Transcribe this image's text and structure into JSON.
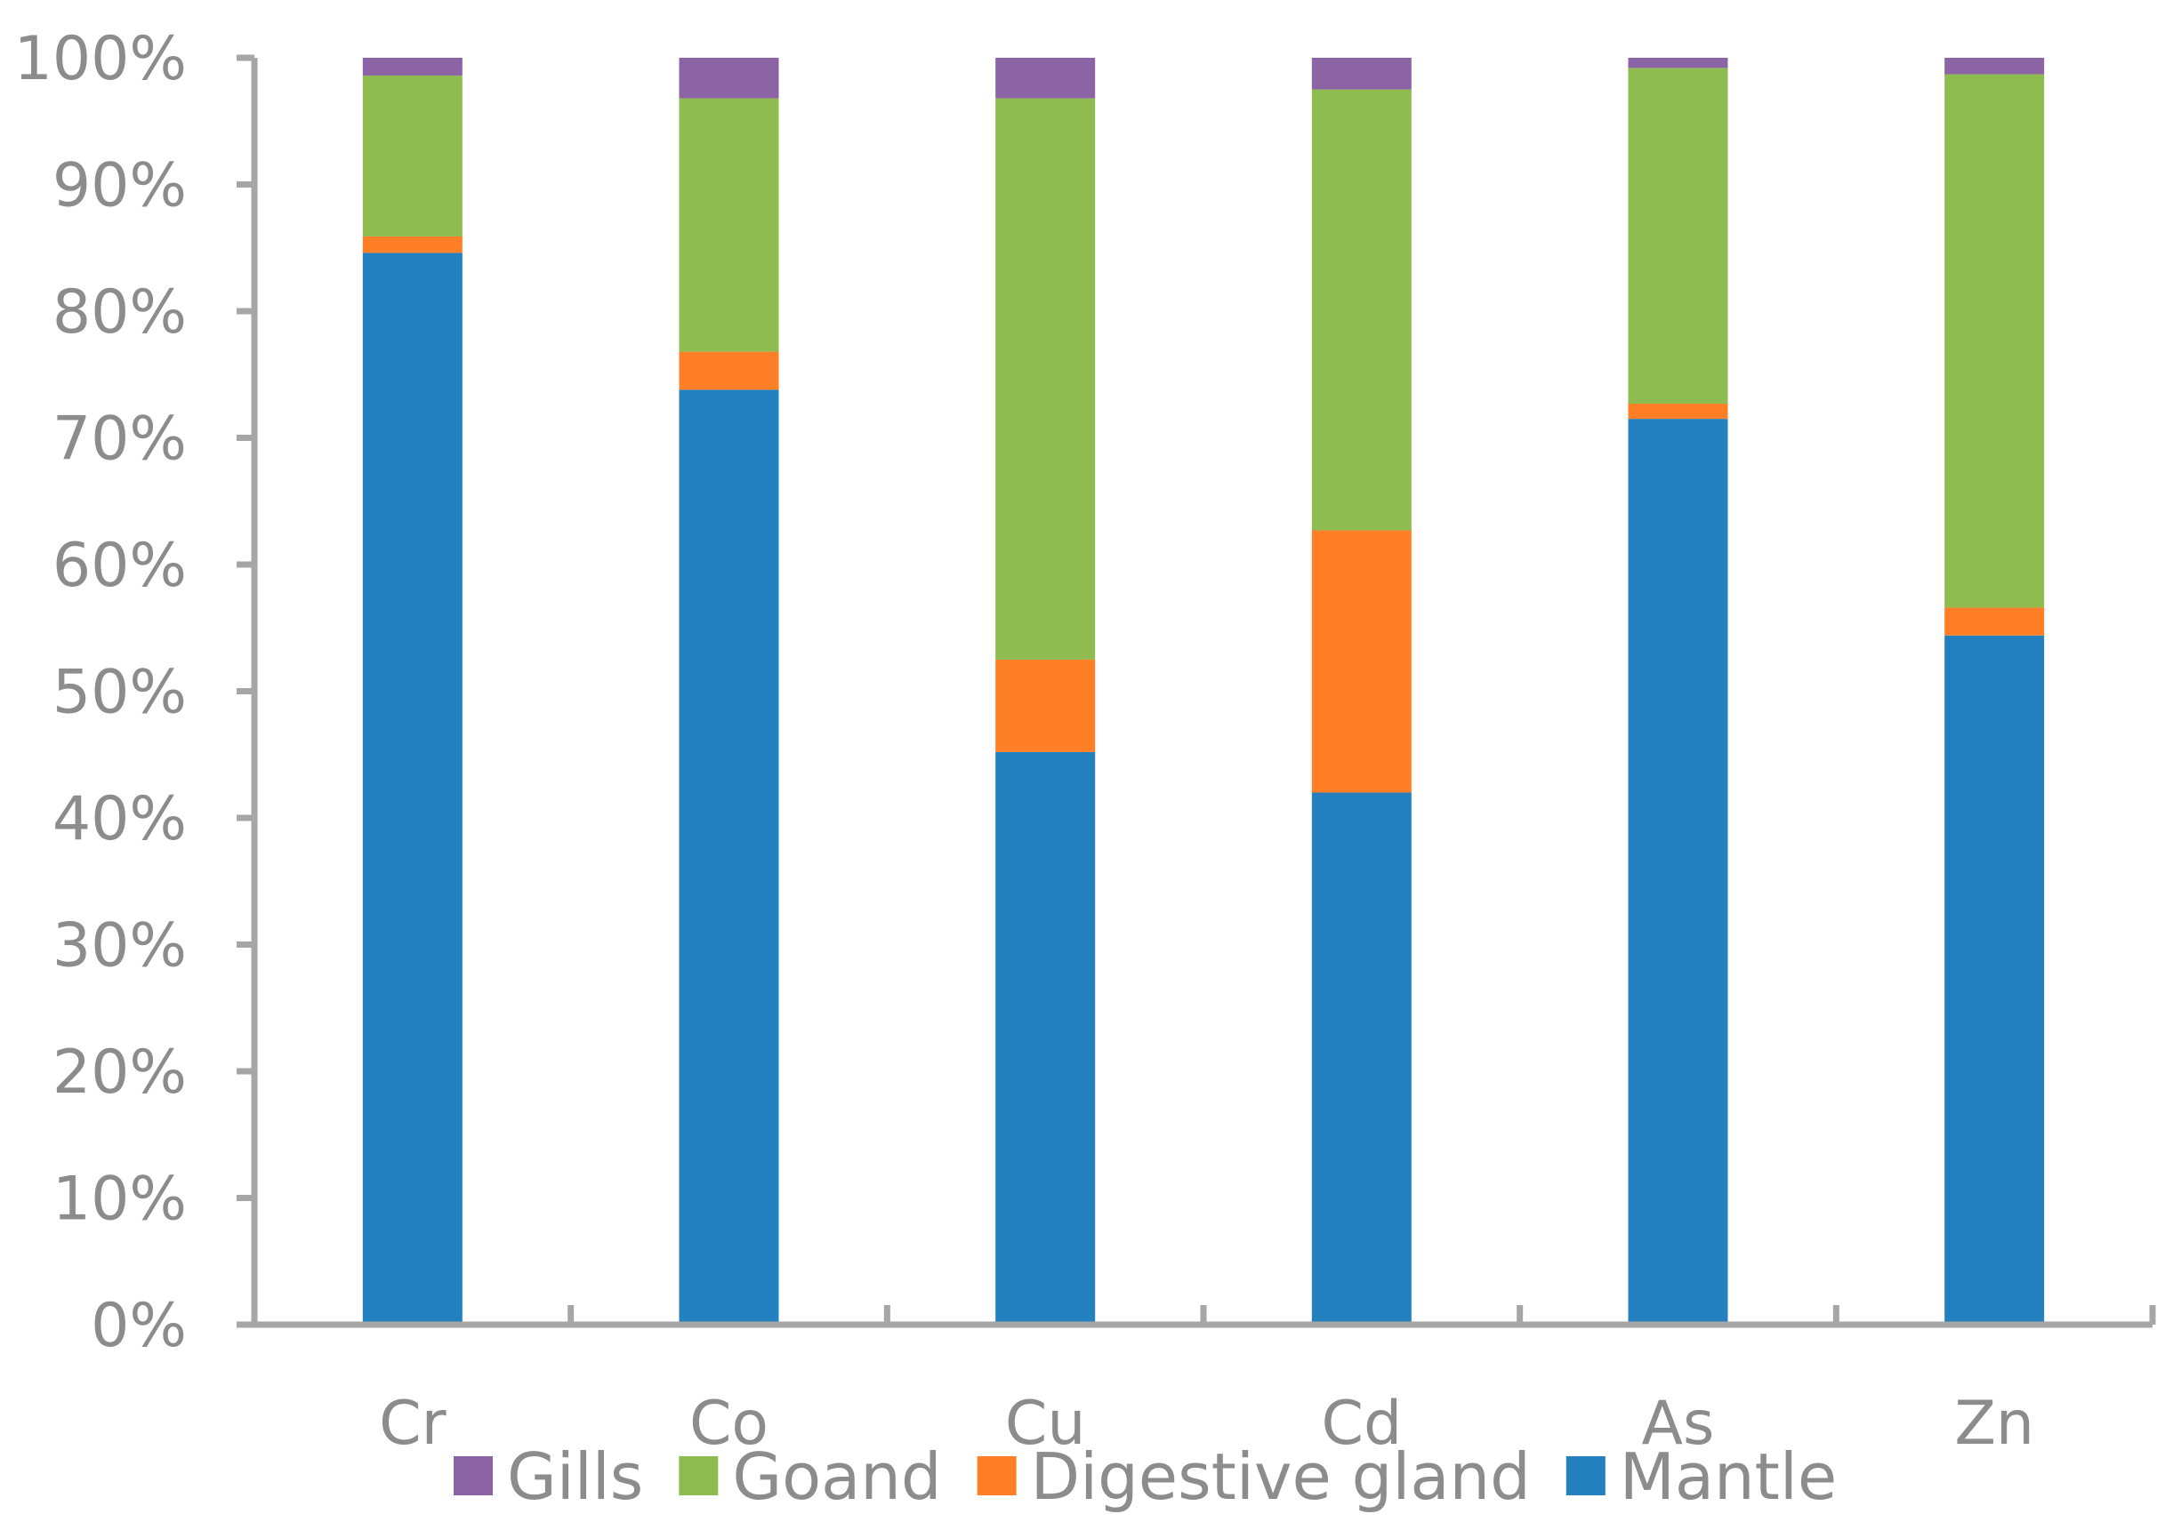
{
  "chart_data": {
    "type": "bar",
    "stacked": true,
    "normalized": true,
    "categories": [
      "Cr",
      "Co",
      "Cu",
      "Cd",
      "As",
      "Zn"
    ],
    "series": [
      {
        "name": "Mantle",
        "color": "#2481c0",
        "values": [
          84.6,
          73.8,
          45.2,
          42.0,
          71.5,
          54.4
        ]
      },
      {
        "name": "Digestive gland",
        "color": "#ff7f27",
        "values": [
          1.3,
          3.0,
          7.3,
          20.7,
          1.2,
          2.2
        ]
      },
      {
        "name": "Goand",
        "color": "#8fbc50",
        "values": [
          12.7,
          20.0,
          44.3,
          34.8,
          26.5,
          42.1
        ]
      },
      {
        "name": "Gills",
        "color": "#8c64a6",
        "values": [
          1.4,
          3.2,
          3.2,
          2.5,
          0.8,
          1.3
        ]
      }
    ],
    "legend_order": [
      "Gills",
      "Goand",
      "Digestive gland",
      "Mantle"
    ],
    "ylim": [
      0,
      100
    ],
    "yticks": [
      "0%",
      "10%",
      "20%",
      "30%",
      "40%",
      "50%",
      "60%",
      "70%",
      "80%",
      "90%",
      "100%"
    ],
    "grid": false,
    "legend_position": "bottom",
    "title": "",
    "xlabel": "",
    "ylabel": ""
  }
}
